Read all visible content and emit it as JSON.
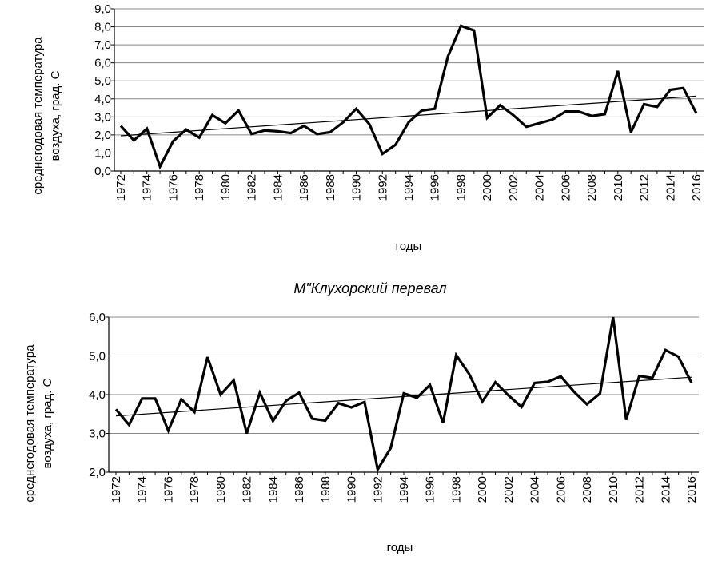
{
  "chart_data": [
    {
      "type": "line",
      "title": "",
      "xlabel": "годы",
      "ylabel_lines": [
        "среднегодовая температура",
        "воздуха, град. С"
      ],
      "ylim": [
        0,
        9
      ],
      "yticks": [
        "0,0",
        "1,0",
        "2,0",
        "3,0",
        "4,0",
        "5,0",
        "6,0",
        "7,0",
        "8,0",
        "9,0"
      ],
      "x": [
        1972,
        1973,
        1974,
        1975,
        1976,
        1977,
        1978,
        1979,
        1980,
        1981,
        1982,
        1983,
        1984,
        1985,
        1986,
        1987,
        1988,
        1989,
        1990,
        1991,
        1992,
        1993,
        1994,
        1995,
        1996,
        1997,
        1998,
        1999,
        2000,
        2001,
        2002,
        2003,
        2004,
        2005,
        2006,
        2007,
        2008,
        2009,
        2010,
        2011,
        2012,
        2013,
        2014,
        2015,
        2016
      ],
      "xticks": [
        "1972",
        "1974",
        "1976",
        "1978",
        "1980",
        "1982",
        "1984",
        "1986",
        "1988",
        "1990",
        "1992",
        "1994",
        "1996",
        "1998",
        "2000",
        "2002",
        "2004",
        "2006",
        "2008",
        "2010",
        "2012",
        "2014",
        "2016"
      ],
      "series": [
        {
          "values": [
            2.5,
            1.7,
            2.35,
            0.25,
            1.65,
            2.3,
            1.85,
            3.1,
            2.65,
            3.35,
            2.05,
            2.25,
            2.2,
            2.1,
            2.5,
            2.05,
            2.15,
            2.7,
            3.45,
            2.6,
            0.95,
            1.45,
            2.7,
            3.35,
            3.45,
            6.35,
            8.05,
            7.8,
            2.95,
            3.65,
            3.1,
            2.45,
            2.65,
            2.85,
            3.3,
            3.3,
            3.05,
            3.15,
            5.55,
            2.15,
            3.7,
            3.55,
            4.5,
            4.6,
            3.2
          ]
        }
      ],
      "trend": {
        "start": [
          1972,
          1.95
        ],
        "end": [
          2016,
          4.15
        ]
      },
      "grid": "horizontal"
    },
    {
      "type": "line",
      "title": "М\"Клухорский перевал",
      "xlabel": "годы",
      "ylabel_lines": [
        "среднегодовая температура",
        "воздуха, град. С"
      ],
      "ylim": [
        2,
        6
      ],
      "yticks": [
        "2,0",
        "3,0",
        "4,0",
        "5,0",
        "6,0"
      ],
      "x": [
        1972,
        1973,
        1974,
        1975,
        1976,
        1977,
        1978,
        1979,
        1980,
        1981,
        1982,
        1983,
        1984,
        1985,
        1986,
        1987,
        1988,
        1989,
        1990,
        1991,
        1992,
        1993,
        1994,
        1995,
        1996,
        1997,
        1998,
        1999,
        2000,
        2001,
        2002,
        2003,
        2004,
        2005,
        2006,
        2007,
        2008,
        2009,
        2010,
        2011,
        2012,
        2013,
        2014,
        2015,
        2016
      ],
      "xticks": [
        "1972",
        "1974",
        "1976",
        "1978",
        "1980",
        "1982",
        "1984",
        "1986",
        "1988",
        "1990",
        "1992",
        "1994",
        "1996",
        "1998",
        "2000",
        "2002",
        "2004",
        "2006",
        "2008",
        "2010",
        "2012",
        "2014",
        "2016"
      ],
      "series": [
        {
          "values": [
            3.62,
            3.22,
            3.9,
            3.9,
            3.07,
            3.88,
            3.55,
            4.97,
            4.0,
            4.37,
            3.0,
            4.05,
            3.32,
            3.84,
            4.05,
            3.38,
            3.33,
            3.78,
            3.67,
            3.81,
            2.07,
            2.62,
            4.03,
            3.92,
            4.25,
            3.27,
            5.02,
            4.53,
            3.82,
            4.32,
            3.98,
            3.68,
            4.3,
            4.33,
            4.47,
            4.08,
            3.75,
            4.03,
            6.0,
            3.35,
            4.48,
            4.43,
            5.15,
            4.98,
            4.3
          ]
        }
      ],
      "trend": {
        "start": [
          1972,
          3.45
        ],
        "end": [
          2016,
          4.45
        ]
      },
      "grid": "horizontal"
    }
  ]
}
